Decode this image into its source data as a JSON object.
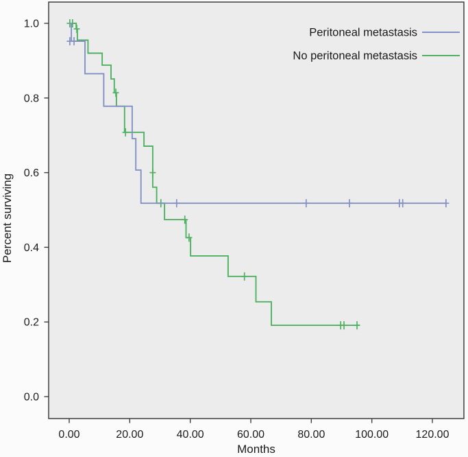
{
  "figure": {
    "background": "#fbfbfb",
    "plot_background": "#ececec",
    "border_color": "#3d3d3d",
    "tick_color": "#3d3d3d",
    "text_color": "#1a1a1a"
  },
  "chart_data": {
    "type": "line",
    "subtype": "kaplan-meier-step-survival",
    "title": "",
    "xlabel": "Months",
    "ylabel": "Percent surviving",
    "grid": "off",
    "x_axis": {
      "tick_labels": [
        "0.00",
        "20.00",
        "40.00",
        "60.00",
        "80.00",
        "100.00",
        "120.00"
      ],
      "tick_values": [
        0,
        20,
        40,
        60,
        80,
        100,
        120
      ],
      "range": [
        -6.8,
        130.4
      ]
    },
    "y_axis": {
      "tick_labels": [
        "0.0",
        "0.2",
        "0.4",
        "0.6",
        "0.8",
        "1.0"
      ],
      "tick_values": [
        0.0,
        0.2,
        0.4,
        0.6,
        0.8,
        1.0
      ],
      "range": [
        -0.06,
        1.06
      ]
    },
    "legend": {
      "position": "top-right-inside",
      "items": [
        "Peritoneal metastasis",
        "No peritoneal metastasis"
      ]
    },
    "series": [
      {
        "name": "No peritoneal metastasis",
        "color": "#4fb161",
        "steps": [
          [
            0,
            1.0
          ],
          [
            2.3,
            0.985
          ],
          [
            2.7,
            0.955
          ],
          [
            6.2,
            0.92
          ],
          [
            10.9,
            0.888
          ],
          [
            13.8,
            0.851
          ],
          [
            14.9,
            0.814
          ],
          [
            15.6,
            0.778
          ],
          [
            18.3,
            0.708
          ],
          [
            24.7,
            0.671
          ],
          [
            27.6,
            0.561
          ],
          [
            28.9,
            0.518
          ],
          [
            31.5,
            0.474
          ],
          [
            38.6,
            0.426
          ],
          [
            40.1,
            0.377
          ],
          [
            52.5,
            0.322
          ],
          [
            61.7,
            0.254
          ],
          [
            66.8,
            0.191
          ]
        ],
        "end_month": 96.0,
        "censors": [
          [
            0.2,
            1.0
          ],
          [
            1.1,
            1.0
          ],
          [
            2.5,
            0.985
          ],
          [
            15.4,
            0.814
          ],
          [
            18.6,
            0.708
          ],
          [
            27.6,
            0.6
          ],
          [
            30.3,
            0.518
          ],
          [
            38.2,
            0.474
          ],
          [
            39.6,
            0.426
          ],
          [
            57.9,
            0.322
          ],
          [
            89.7,
            0.191
          ],
          [
            90.8,
            0.191
          ],
          [
            95.1,
            0.191
          ]
        ]
      },
      {
        "name": "Peritoneal metastasis",
        "color": "#8290c4",
        "steps": [
          [
            0,
            1.0
          ],
          [
            0.7,
            0.952
          ],
          [
            5.2,
            0.865
          ],
          [
            11.4,
            0.778
          ],
          [
            20.8,
            0.691
          ],
          [
            22.0,
            0.607
          ],
          [
            23.7,
            0.518
          ]
        ],
        "end_month": 124.5,
        "censors": [
          [
            0.2,
            0.952
          ],
          [
            1.6,
            0.952
          ],
          [
            35.5,
            0.518
          ],
          [
            78.3,
            0.518
          ],
          [
            92.6,
            0.518
          ],
          [
            109.1,
            0.518
          ],
          [
            110.2,
            0.518
          ],
          [
            124.5,
            0.518
          ]
        ]
      }
    ]
  }
}
